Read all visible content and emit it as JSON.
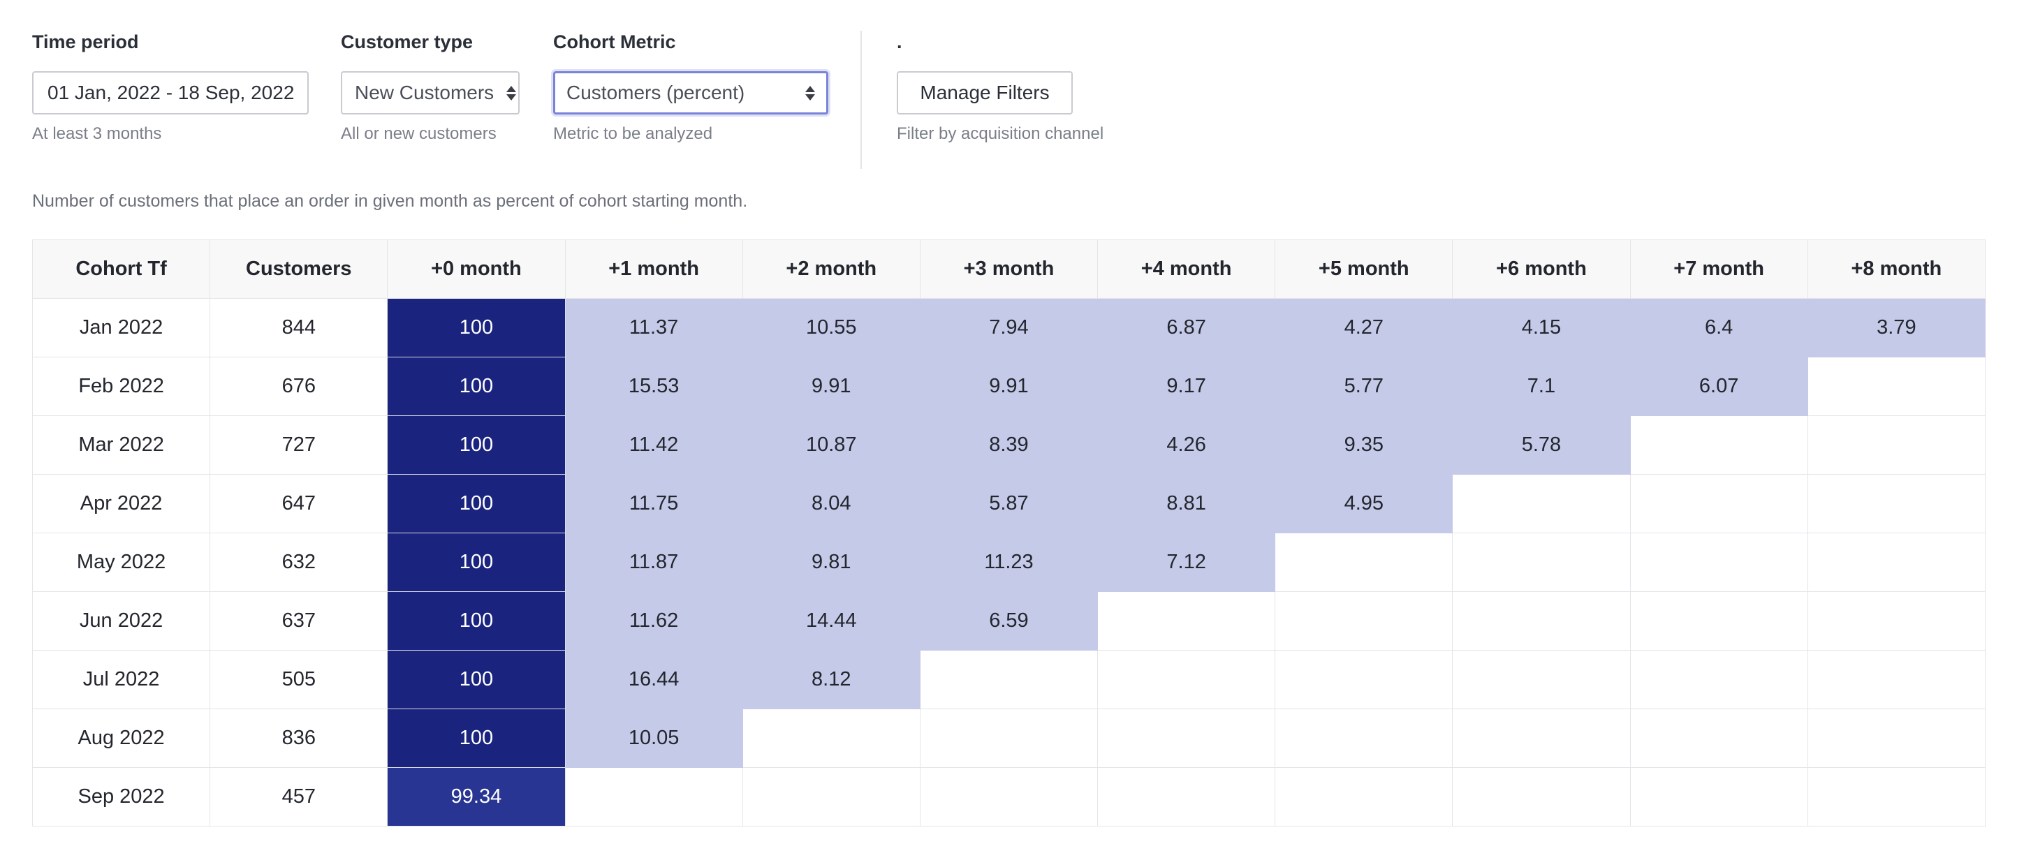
{
  "filters": {
    "time_period": {
      "label": "Time period",
      "value": "01 Jan, 2022 - 18 Sep, 2022",
      "hint": "At least 3 months"
    },
    "customer_type": {
      "label": "Customer type",
      "value": "New Customers",
      "hint": "All or new customers"
    },
    "cohort_metric": {
      "label": "Cohort Metric",
      "value": "Customers (percent)",
      "hint": "Metric to be analyzed"
    },
    "manage": {
      "label": ".",
      "button_label": "Manage Filters",
      "hint": "Filter by acquisition channel"
    }
  },
  "description": "Number of customers that place an order in given month as percent of cohort starting month.",
  "colors": {
    "month0_full": "#1a237e",
    "month0_partial": "#283593",
    "retention_cell": "#c5cae9"
  },
  "table": {
    "headers": [
      "Cohort Tf",
      "Customers",
      "+0 month",
      "+1 month",
      "+2 month",
      "+3 month",
      "+4 month",
      "+5 month",
      "+6 month",
      "+7 month",
      "+8 month"
    ],
    "rows": [
      {
        "cohort": "Jan 2022",
        "customers": "844",
        "values": [
          "100",
          "11.37",
          "10.55",
          "7.94",
          "6.87",
          "4.27",
          "4.15",
          "6.4",
          "3.79"
        ]
      },
      {
        "cohort": "Feb 2022",
        "customers": "676",
        "values": [
          "100",
          "15.53",
          "9.91",
          "9.91",
          "9.17",
          "5.77",
          "7.1",
          "6.07"
        ]
      },
      {
        "cohort": "Mar 2022",
        "customers": "727",
        "values": [
          "100",
          "11.42",
          "10.87",
          "8.39",
          "4.26",
          "9.35",
          "5.78"
        ]
      },
      {
        "cohort": "Apr 2022",
        "customers": "647",
        "values": [
          "100",
          "11.75",
          "8.04",
          "5.87",
          "8.81",
          "4.95"
        ]
      },
      {
        "cohort": "May 2022",
        "customers": "632",
        "values": [
          "100",
          "11.87",
          "9.81",
          "11.23",
          "7.12"
        ]
      },
      {
        "cohort": "Jun 2022",
        "customers": "637",
        "values": [
          "100",
          "11.62",
          "14.44",
          "6.59"
        ]
      },
      {
        "cohort": "Jul 2022",
        "customers": "505",
        "values": [
          "100",
          "16.44",
          "8.12"
        ]
      },
      {
        "cohort": "Aug 2022",
        "customers": "836",
        "values": [
          "100",
          "10.05"
        ]
      },
      {
        "cohort": "Sep 2022",
        "customers": "457",
        "values": [
          "99.34"
        ]
      }
    ]
  }
}
